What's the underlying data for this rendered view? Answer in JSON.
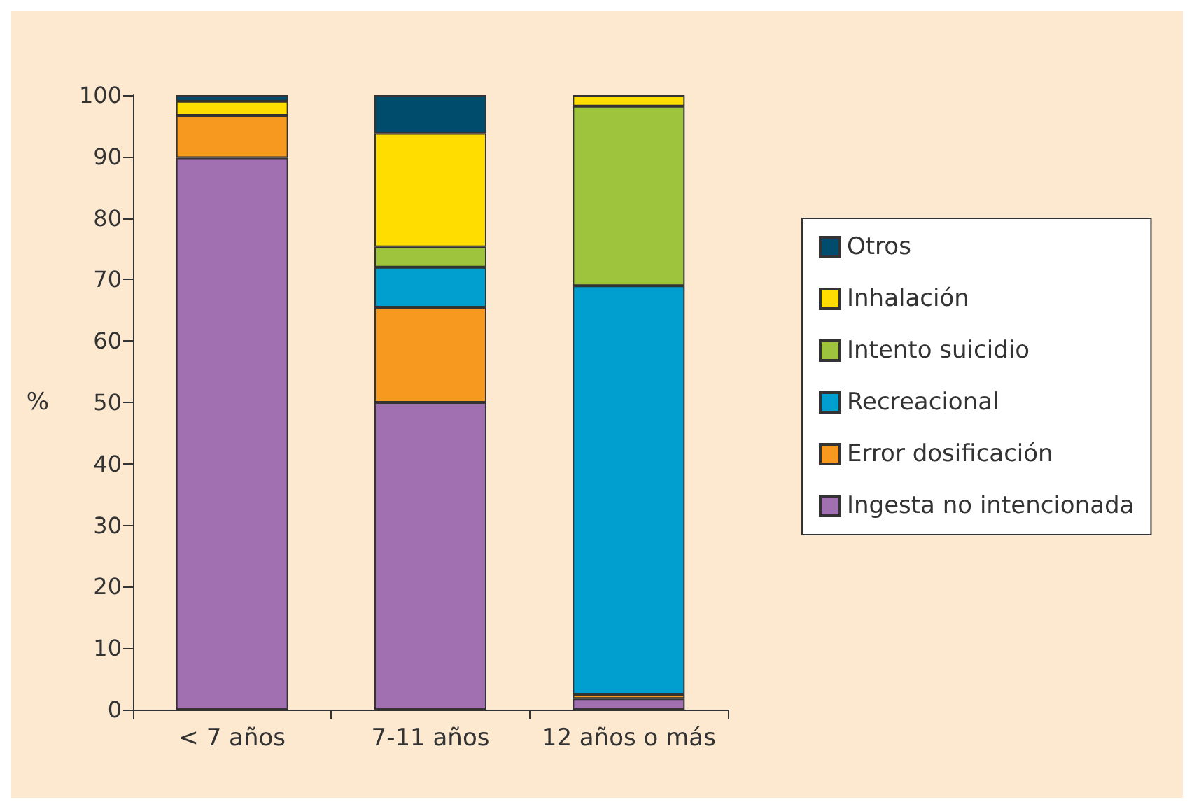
{
  "chart_data": {
    "type": "bar",
    "stacked": true,
    "ylabel": "%",
    "categories": [
      "< 7 años",
      "7-11 años",
      "12 años o más"
    ],
    "series": [
      {
        "name": "Ingesta no intencionada",
        "color": "#a070b0",
        "values": [
          89.8,
          50,
          1.8
        ]
      },
      {
        "name": "Error dosificación",
        "color": "#f7991f",
        "values": [
          6.9,
          15.5,
          0.7
        ]
      },
      {
        "name": "Recreacional",
        "color": "#009fd0",
        "values": [
          null,
          6.5,
          66.5
        ]
      },
      {
        "name": "Intento suicidio",
        "color": "#9dc43c",
        "values": [
          null,
          3.3,
          29.2
        ]
      },
      {
        "name": "Inhalación",
        "color": "#ffdd00",
        "values": [
          2.3,
          18.5,
          1.8
        ]
      },
      {
        "name": "Otros",
        "color": "#004c6c",
        "values": [
          1.0,
          6.2,
          null
        ]
      }
    ],
    "ylim": [
      0,
      100
    ],
    "yticks": [
      0,
      10,
      20,
      30,
      40,
      50,
      60,
      70,
      80,
      90,
      100
    ],
    "grid": false,
    "legend": "right"
  }
}
